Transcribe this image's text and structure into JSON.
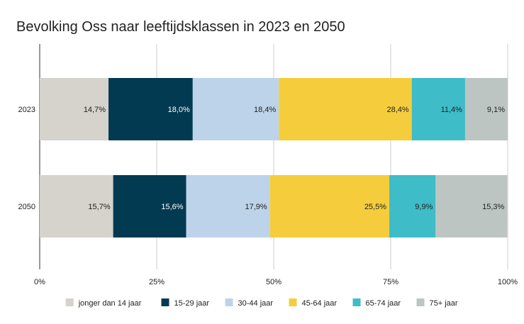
{
  "chart_data": {
    "type": "bar",
    "orientation": "horizontal",
    "stacked": "percent",
    "title": "Bevolking Oss naar leeftijdsklassen in 2023 en 2050",
    "categories": [
      "2023",
      "2050"
    ],
    "series": [
      {
        "name": "jonger dan 14 jaar",
        "color": "#d6d2cc",
        "values": [
          14.7,
          15.7
        ],
        "labels": [
          "14,7%",
          "15,7%"
        ],
        "label_color": "#222222"
      },
      {
        "name": "15-29 jaar",
        "color": "#023a51",
        "values": [
          18.0,
          15.6
        ],
        "labels": [
          "18,0%",
          "15,6%"
        ],
        "label_color": "#ffffff"
      },
      {
        "name": "30-44 jaar",
        "color": "#bcd3ea",
        "values": [
          18.4,
          17.9
        ],
        "labels": [
          "18,4%",
          "17,9%"
        ],
        "label_color": "#222222"
      },
      {
        "name": "45-64 jaar",
        "color": "#f5cd3c",
        "values": [
          28.4,
          25.5
        ],
        "labels": [
          "28,4%",
          "25,5%"
        ],
        "label_color": "#222222"
      },
      {
        "name": "65-74 jaar",
        "color": "#3ebcc8",
        "values": [
          11.4,
          9.9
        ],
        "labels": [
          "11,4%",
          "9,9%"
        ],
        "label_color": "#222222"
      },
      {
        "name": "75+ jaar",
        "color": "#bdc5c3",
        "values": [
          9.1,
          15.3
        ],
        "labels": [
          "9,1%",
          "15,3%"
        ],
        "label_color": "#222222"
      }
    ],
    "xlim": [
      0,
      100
    ],
    "xticks": [
      0,
      25,
      50,
      75,
      100
    ],
    "xtick_labels": [
      "0%",
      "25%",
      "50%",
      "75%",
      "100%"
    ],
    "grid": true,
    "legend_position": "bottom"
  }
}
